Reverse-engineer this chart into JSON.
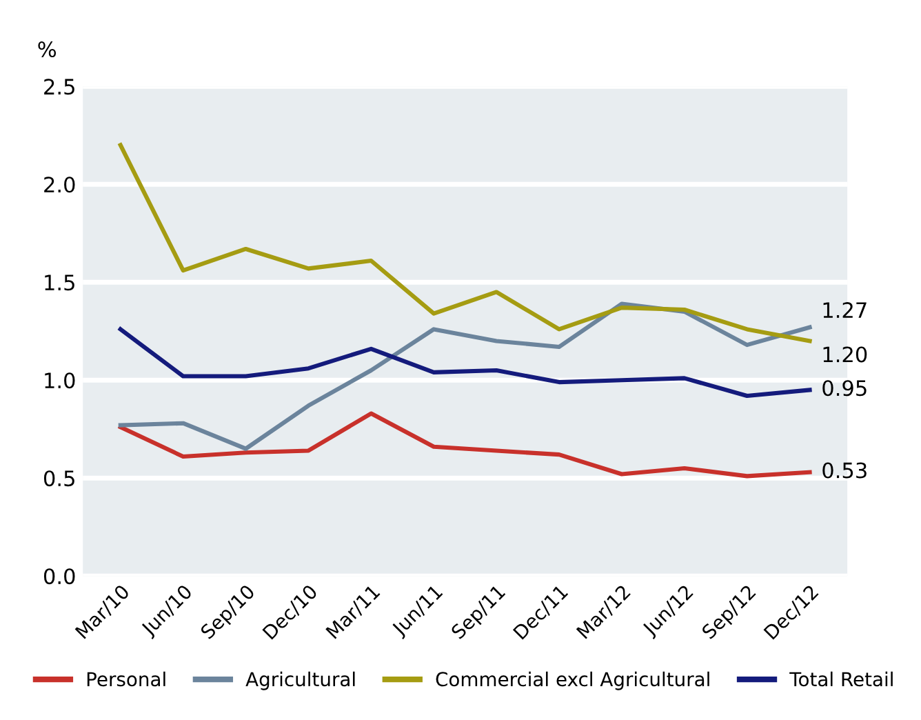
{
  "chart_data": {
    "type": "line",
    "ylabel": "%",
    "categories": [
      "Mar/10",
      "Jun/10",
      "Sep/10",
      "Dec/10",
      "Mar/11",
      "Jun/11",
      "Sep/11",
      "Dec/11",
      "Mar/12",
      "Jun/12",
      "Sep/12",
      "Dec/12"
    ],
    "series": [
      {
        "name": "Personal",
        "color": "#c8312b",
        "values": [
          0.76,
          0.61,
          0.63,
          0.64,
          0.83,
          0.66,
          0.64,
          0.62,
          0.52,
          0.55,
          0.51,
          0.53
        ],
        "value_labels": [
          null,
          null,
          null,
          null,
          null,
          null,
          null,
          null,
          null,
          null,
          null,
          "0.53"
        ]
      },
      {
        "name": "Agricultural",
        "color": "#6b849c",
        "values": [
          0.77,
          0.78,
          0.65,
          0.87,
          1.05,
          1.26,
          1.2,
          1.17,
          1.39,
          1.35,
          1.18,
          1.27
        ],
        "value_labels": [
          null,
          null,
          null,
          null,
          null,
          null,
          null,
          null,
          null,
          null,
          null,
          "1.27"
        ]
      },
      {
        "name": "Commercial excl Agricultural",
        "color": "#a59c12",
        "values": [
          2.2,
          1.56,
          1.67,
          1.57,
          1.61,
          1.34,
          1.45,
          1.26,
          1.37,
          1.36,
          1.26,
          1.2
        ],
        "value_labels": [
          null,
          null,
          null,
          null,
          null,
          null,
          null,
          null,
          null,
          null,
          null,
          "1.20"
        ]
      },
      {
        "name": "Total Retail",
        "color": "#141b7c",
        "values": [
          1.26,
          1.02,
          1.02,
          1.06,
          1.16,
          1.04,
          1.05,
          0.99,
          1.0,
          1.01,
          0.92,
          0.95
        ],
        "value_labels": [
          null,
          null,
          null,
          null,
          null,
          null,
          null,
          null,
          null,
          null,
          null,
          "0.95"
        ]
      }
    ],
    "ylim": [
      0,
      2.5
    ],
    "yticks": [
      {
        "value": 0,
        "label": "0.0"
      },
      {
        "value": 0.5,
        "label": "0.5"
      },
      {
        "value": 1,
        "label": "1.0"
      },
      {
        "value": 1.5,
        "label": "1.5"
      },
      {
        "value": 2,
        "label": "2.0"
      },
      {
        "value": 2.5,
        "label": "2.5"
      }
    ],
    "grid": "y",
    "legend": "bottom",
    "marker": "none",
    "line_style": "solid"
  }
}
